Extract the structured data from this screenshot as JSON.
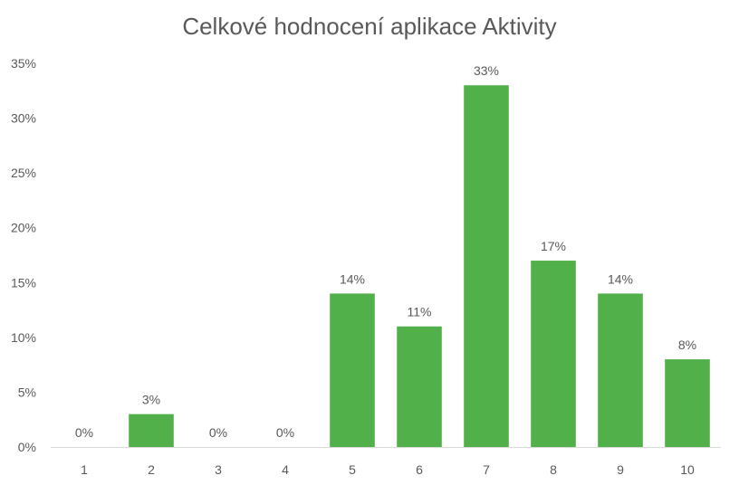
{
  "chart_data": {
    "type": "bar",
    "title": "Celkové hodnocení aplikace Aktivity",
    "xlabel": "",
    "ylabel": "",
    "categories": [
      "1",
      "2",
      "3",
      "4",
      "5",
      "6",
      "7",
      "8",
      "9",
      "10"
    ],
    "values": [
      0,
      3,
      0,
      0,
      14,
      11,
      33,
      17,
      14,
      8
    ],
    "value_labels": [
      "0%",
      "3%",
      "0%",
      "0%",
      "14%",
      "11%",
      "33%",
      "17%",
      "14%",
      "8%"
    ],
    "ylim": [
      0,
      35
    ],
    "y_ticks": [
      0,
      5,
      10,
      15,
      20,
      25,
      30,
      35
    ],
    "y_tick_labels": [
      "0%",
      "5%",
      "10%",
      "15%",
      "20%",
      "25%",
      "30%",
      "35%"
    ],
    "grid": false,
    "legend": "none",
    "bar_color": "#52b04b",
    "text_color": "#595959",
    "axis_color": "#d9d9d9"
  }
}
